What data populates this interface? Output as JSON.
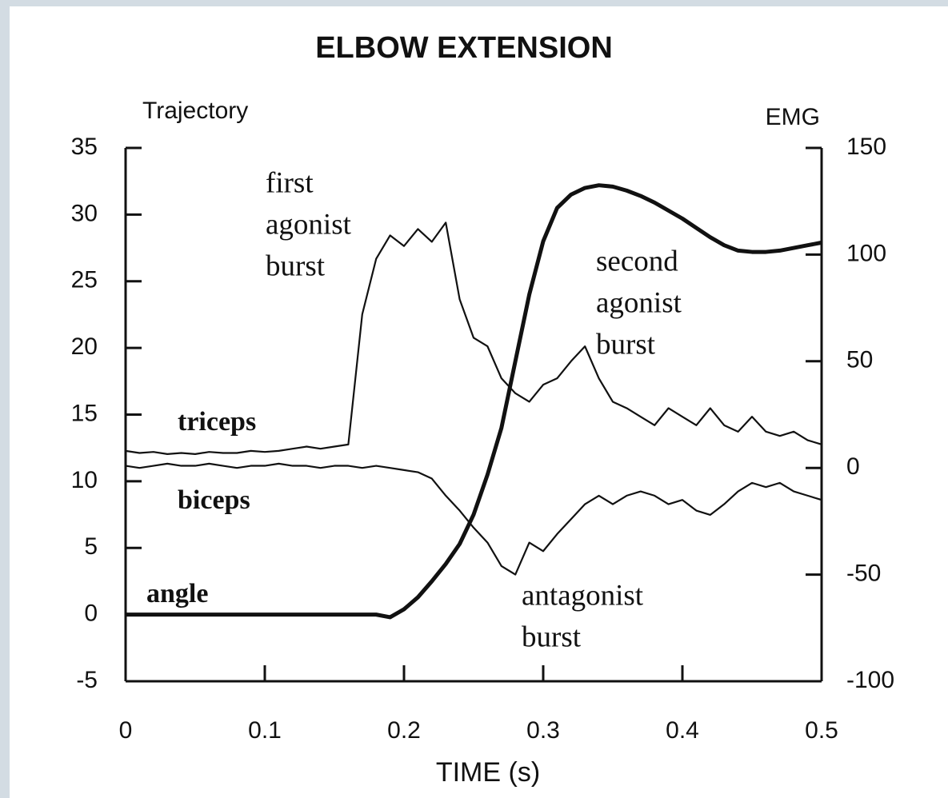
{
  "chart_data": {
    "type": "line",
    "title": "ELBOW EXTENSION",
    "y_label": "Trajectory",
    "y2_label": "EMG",
    "x_label": "TIME (s)",
    "x": [
      0,
      0.01,
      0.02,
      0.03,
      0.04,
      0.05,
      0.06,
      0.07,
      0.08,
      0.09,
      0.1,
      0.11,
      0.12,
      0.13,
      0.14,
      0.15,
      0.16,
      0.17,
      0.18,
      0.19,
      0.2,
      0.21,
      0.22,
      0.23,
      0.24,
      0.25,
      0.26,
      0.27,
      0.28,
      0.29,
      0.3,
      0.31,
      0.32,
      0.33,
      0.34,
      0.35,
      0.36,
      0.37,
      0.38,
      0.39,
      0.4,
      0.41,
      0.42,
      0.43,
      0.44,
      0.45,
      0.46,
      0.47,
      0.48,
      0.49,
      0.5
    ],
    "series": [
      {
        "name": "angle",
        "color": "#111111",
        "axis": "y",
        "values": [
          0,
          0,
          0,
          0,
          0,
          0,
          0,
          0,
          0,
          0,
          0,
          0,
          0,
          0,
          0,
          0,
          0,
          0,
          0,
          -0.2,
          0.4,
          1.3,
          2.5,
          3.8,
          5.3,
          7.5,
          10.5,
          14,
          19,
          24,
          28,
          30.5,
          31.5,
          32,
          32.2,
          32.1,
          31.8,
          31.4,
          30.9,
          30.3,
          29.7,
          29,
          28.3,
          27.7,
          27.3,
          27.2,
          27.2,
          27.3,
          27.5,
          27.7,
          27.9
        ]
      },
      {
        "name": "triceps",
        "color": "#111111",
        "axis": "y2",
        "values": [
          8,
          7,
          7.5,
          6.5,
          7,
          6.5,
          7.5,
          7,
          7,
          8,
          7.5,
          8,
          9,
          10,
          9,
          10,
          11,
          72,
          98,
          109,
          104,
          112,
          106,
          115,
          79,
          61,
          57,
          42,
          35,
          31,
          39,
          42,
          50,
          57,
          42,
          31,
          28,
          24,
          20,
          28,
          24,
          20,
          28,
          20,
          17,
          24,
          17,
          15,
          17,
          13,
          11
        ]
      },
      {
        "name": "biceps",
        "color": "#111111",
        "axis": "y2",
        "values": [
          1,
          0,
          1,
          2,
          1,
          1,
          2,
          1,
          0,
          1,
          1,
          2,
          1,
          1,
          0,
          1,
          1,
          0,
          1,
          0,
          -1,
          -2,
          -5,
          -13,
          -20,
          -28,
          -35,
          -46,
          -50,
          -35,
          -39,
          -31,
          -24,
          -17,
          -13,
          -17,
          -13,
          -11,
          -13,
          -17,
          -15,
          -20,
          -22,
          -17,
          -11,
          -7,
          -9,
          -7,
          -11,
          -13,
          -15
        ]
      }
    ],
    "annotations": [
      [
        "first",
        "agonist",
        "burst"
      ],
      [
        "second",
        "agonist",
        "burst"
      ],
      [
        "antagonist",
        "burst"
      ]
    ],
    "xlim": [
      0,
      0.5
    ],
    "xticks": [
      0,
      0.1,
      0.2,
      0.3,
      0.4,
      0.5
    ],
    "ylim": [
      -5,
      35
    ],
    "yticks": [
      -5,
      0,
      5,
      10,
      15,
      20,
      25,
      30,
      35
    ],
    "y2lim": [
      -100,
      150
    ],
    "y2ticks": [
      -100,
      -50,
      0,
      50,
      100,
      150
    ],
    "grid": false
  }
}
